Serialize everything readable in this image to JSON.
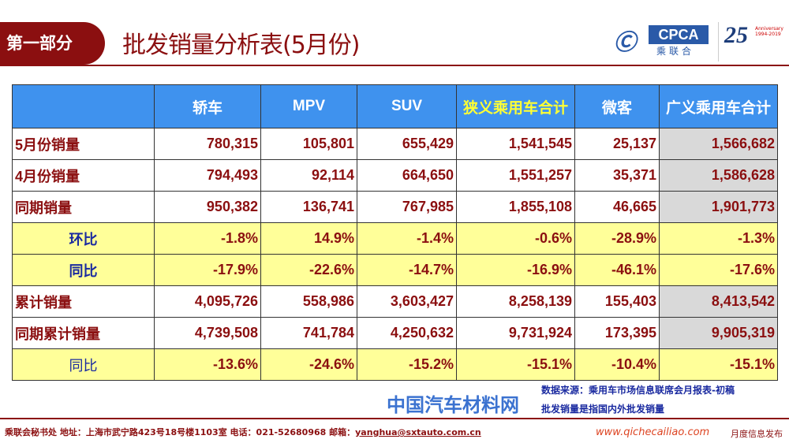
{
  "header": {
    "section": "第一部分",
    "title": "批发销量分析表(5月份)",
    "logo_cpca": "CPCA",
    "logo_cpca_sub": "乘联合",
    "logo_25": "25",
    "logo_25_sub": "Anniversary 1994-2019"
  },
  "table": {
    "columns": [
      "",
      "轿车",
      "MPV",
      "SUV",
      "狭义乘用车合计",
      "微客",
      "广义乘用车合计"
    ],
    "rows": [
      {
        "label": "5月份销量",
        "values": [
          "780,315",
          "105,801",
          "655,429",
          "1,541,545",
          "25,137",
          "1,566,682"
        ]
      },
      {
        "label": "4月份销量",
        "values": [
          "794,493",
          "92,114",
          "664,650",
          "1,551,257",
          "35,371",
          "1,586,628"
        ]
      },
      {
        "label": "同期销量",
        "values": [
          "950,382",
          "136,741",
          "767,985",
          "1,855,108",
          "46,665",
          "1,901,773"
        ]
      },
      {
        "label": "环比",
        "values": [
          "-1.8%",
          "14.9%",
          "-1.4%",
          "-0.6%",
          "-28.9%",
          "-1.3%"
        ]
      },
      {
        "label": "同比",
        "values": [
          "-17.9%",
          "-22.6%",
          "-14.7%",
          "-16.9%",
          "-46.1%",
          "-17.6%"
        ]
      },
      {
        "label": "累计销量",
        "values": [
          "4,095,726",
          "558,986",
          "3,603,427",
          "8,258,139",
          "155,403",
          "8,413,542"
        ]
      },
      {
        "label": "同期累计销量",
        "values": [
          "4,739,508",
          "741,784",
          "4,250,632",
          "9,731,924",
          "173,395",
          "9,905,319"
        ]
      },
      {
        "label": "同比",
        "values": [
          "-13.6%",
          "-24.6%",
          "-15.2%",
          "-15.1%",
          "-10.4%",
          "-15.1%"
        ]
      }
    ]
  },
  "notes": [
    "数据来源：乘用车市场信息联席会月报表-初稿",
    "批发销量是指国内外批发销量"
  ],
  "footer": {
    "left": "乘联会秘书处   地址：上海市武宁路423号18号楼1103室  电话：021-52680968   邮箱：",
    "email": "yanghua@sxtauto.com.cn",
    "right": "月度信息发布"
  },
  "watermark": {
    "title": "中国汽车材料网",
    "url": "www.qichecailiao.com"
  }
}
